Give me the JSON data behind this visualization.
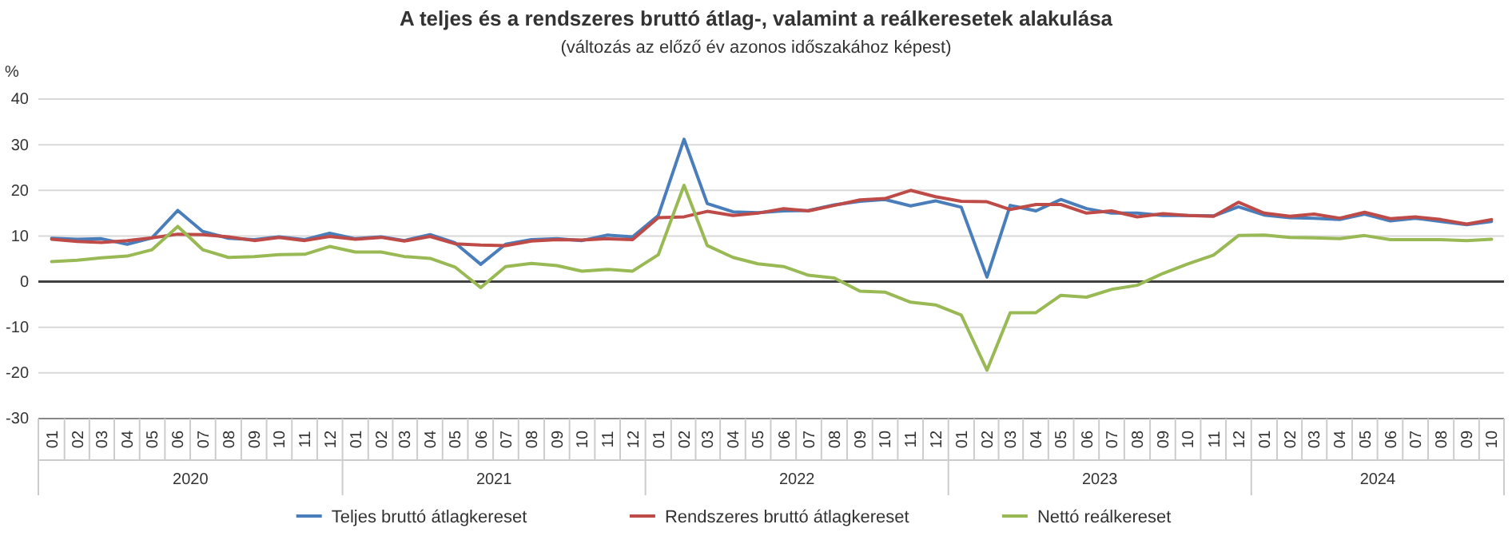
{
  "chart_data": {
    "type": "line",
    "title": "A teljes és a rendszeres bruttó átlag-, valamint a reálkeresetek alakulása",
    "subtitle": "(változás az előző év azonos időszakához képest)",
    "ylabel": "%",
    "x": [
      "2020-01",
      "2020-02",
      "2020-03",
      "2020-04",
      "2020-05",
      "2020-06",
      "2020-07",
      "2020-08",
      "2020-09",
      "2020-10",
      "2020-11",
      "2020-12",
      "2021-01",
      "2021-02",
      "2021-03",
      "2021-04",
      "2021-05",
      "2021-06",
      "2021-07",
      "2021-08",
      "2021-09",
      "2021-10",
      "2021-11",
      "2021-12",
      "2022-01",
      "2022-02",
      "2022-03",
      "2022-04",
      "2022-05",
      "2022-06",
      "2022-07",
      "2022-08",
      "2022-09",
      "2022-10",
      "2022-11",
      "2022-12",
      "2023-01",
      "2023-02",
      "2023-03",
      "2023-04",
      "2023-05",
      "2023-06",
      "2023-07",
      "2023-08",
      "2023-09",
      "2023-10",
      "2023-11",
      "2023-12",
      "2024-01",
      "2024-02",
      "2024-03",
      "2024-04",
      "2024-05",
      "2024-06",
      "2024-07",
      "2024-08",
      "2024-09",
      "2024-10"
    ],
    "xlim": [
      "2019-12-16",
      "2024-10-16"
    ],
    "xticks": [
      {
        "value": "2020-01",
        "label": "01"
      },
      {
        "value": "2020-02",
        "label": "02"
      },
      {
        "value": "2020-03",
        "label": "03"
      },
      {
        "value": "2020-04",
        "label": "04"
      },
      {
        "value": "2020-05",
        "label": "05"
      },
      {
        "value": "2020-06",
        "label": "06"
      },
      {
        "value": "2020-07",
        "label": "07"
      },
      {
        "value": "2020-08",
        "label": "08"
      },
      {
        "value": "2020-09",
        "label": "09"
      },
      {
        "value": "2020-10",
        "label": "10"
      },
      {
        "value": "2020-11",
        "label": "11"
      },
      {
        "value": "2020-12",
        "label": "12"
      },
      {
        "value": "2021-01",
        "label": "01"
      },
      {
        "value": "2021-02",
        "label": "02"
      },
      {
        "value": "2021-03",
        "label": "03"
      },
      {
        "value": "2021-04",
        "label": "04"
      },
      {
        "value": "2021-05",
        "label": "05"
      },
      {
        "value": "2021-06",
        "label": "06"
      },
      {
        "value": "2021-07",
        "label": "07"
      },
      {
        "value": "2021-08",
        "label": "08"
      },
      {
        "value": "2021-09",
        "label": "09"
      },
      {
        "value": "2021-10",
        "label": "10"
      },
      {
        "value": "2021-11",
        "label": "11"
      },
      {
        "value": "2021-12",
        "label": "12"
      },
      {
        "value": "2022-01",
        "label": "01"
      },
      {
        "value": "2022-02",
        "label": "02"
      },
      {
        "value": "2022-03",
        "label": "03"
      },
      {
        "value": "2022-04",
        "label": "04"
      },
      {
        "value": "2022-05",
        "label": "05"
      },
      {
        "value": "2022-06",
        "label": "06"
      },
      {
        "value": "2022-07",
        "label": "07"
      },
      {
        "value": "2022-08",
        "label": "08"
      },
      {
        "value": "2022-09",
        "label": "09"
      },
      {
        "value": "2022-10",
        "label": "10"
      },
      {
        "value": "2022-11",
        "label": "11"
      },
      {
        "value": "2022-12",
        "label": "12"
      },
      {
        "value": "2023-01",
        "label": "01"
      },
      {
        "value": "2023-02",
        "label": "02"
      },
      {
        "value": "2023-03",
        "label": "03"
      },
      {
        "value": "2023-04",
        "label": "04"
      },
      {
        "value": "2023-05",
        "label": "05"
      },
      {
        "value": "2023-06",
        "label": "06"
      },
      {
        "value": "2023-07",
        "label": "07"
      },
      {
        "value": "2023-08",
        "label": "08"
      },
      {
        "value": "2023-09",
        "label": "09"
      },
      {
        "value": "2023-10",
        "label": "10"
      },
      {
        "value": "2023-11",
        "label": "11"
      },
      {
        "value": "2023-12",
        "label": "12"
      },
      {
        "value": "2024-01",
        "label": "01"
      },
      {
        "value": "2024-02",
        "label": "02"
      },
      {
        "value": "2024-03",
        "label": "03"
      },
      {
        "value": "2024-04",
        "label": "04"
      },
      {
        "value": "2024-05",
        "label": "05"
      },
      {
        "value": "2024-06",
        "label": "06"
      },
      {
        "value": "2024-07",
        "label": "07"
      },
      {
        "value": "2024-08",
        "label": "08"
      },
      {
        "value": "2024-09",
        "label": "09"
      },
      {
        "value": "2024-10",
        "label": "10"
      }
    ],
    "annotations": [
      "2020",
      "2021",
      "2022",
      "2023",
      "2024"
    ],
    "ylim": [
      -30,
      40
    ],
    "yticks": [
      -30,
      -20,
      -10,
      0,
      10,
      20,
      30,
      40
    ],
    "grid": "y",
    "legend": "bottom",
    "marker": "none",
    "line_style": "solid",
    "ref_lines": [
      {
        "axis": "y",
        "value": 0,
        "label": null,
        "color": "#404040"
      }
    ],
    "series": [
      {
        "name": "Teljes bruttó átlagkereset",
        "color": "#4a7ebb",
        "values": [
          9.5,
          9.3,
          9.4,
          8.2,
          9.6,
          15.6,
          11,
          9.5,
          9.2,
          9.8,
          9.2,
          10.6,
          9.4,
          9.8,
          9,
          10.3,
          8.5,
          3.8,
          8.2,
          9.2,
          9.4,
          9,
          10.2,
          9.8,
          14.5,
          31.2,
          17.1,
          15.3,
          15.1,
          15.5,
          15.6,
          16.8,
          17.6,
          18,
          16.6,
          17.7,
          16.3,
          1.0,
          16.7,
          15.5,
          18,
          16,
          15,
          15,
          14.5,
          14.5,
          14.4,
          16.4,
          14.6,
          14,
          13.9,
          13.6,
          14.8,
          13.3,
          13.9,
          13.2,
          12.5,
          13.2
        ]
      },
      {
        "name": "Rendszeres bruttó átlagkereset",
        "color": "#be4b48",
        "values": [
          9.3,
          8.8,
          8.6,
          9,
          9.6,
          10.4,
          10.3,
          9.8,
          9,
          9.7,
          9,
          9.9,
          9.3,
          9.7,
          8.9,
          9.9,
          8.3,
          8,
          7.9,
          8.9,
          9.2,
          9.1,
          9.4,
          9.2,
          14,
          14.2,
          15.4,
          14.5,
          15,
          16,
          15.5,
          16.7,
          17.9,
          18.2,
          20,
          18.6,
          17.6,
          17.5,
          15.8,
          16.9,
          16.9,
          15,
          15.5,
          14.2,
          14.9,
          14.5,
          14.3,
          17.4,
          15,
          14.3,
          14.8,
          13.9,
          15.2,
          13.8,
          14.2,
          13.6,
          12.6,
          13.6
        ]
      },
      {
        "name": "Nettó reálkereset",
        "color": "#98b954",
        "values": [
          4.4,
          4.7,
          5.2,
          5.6,
          7,
          12.1,
          7,
          5.3,
          5.5,
          5.9,
          6,
          7.7,
          6.5,
          6.5,
          5.5,
          5.1,
          3.2,
          -1.3,
          3.3,
          4,
          3.5,
          2.3,
          2.7,
          2.3,
          5.9,
          21.1,
          7.9,
          5.3,
          3.9,
          3.3,
          1.4,
          0.8,
          -2.1,
          -2.3,
          -4.5,
          -5.1,
          -7.3,
          -19.4,
          -6.8,
          -6.8,
          -3,
          -3.4,
          -1.7,
          -0.8,
          1.8,
          3.9,
          5.8,
          10.1,
          10.2,
          9.7,
          9.6,
          9.4,
          10.1,
          9.2,
          9.2,
          9.2,
          9,
          9.3
        ]
      }
    ]
  }
}
